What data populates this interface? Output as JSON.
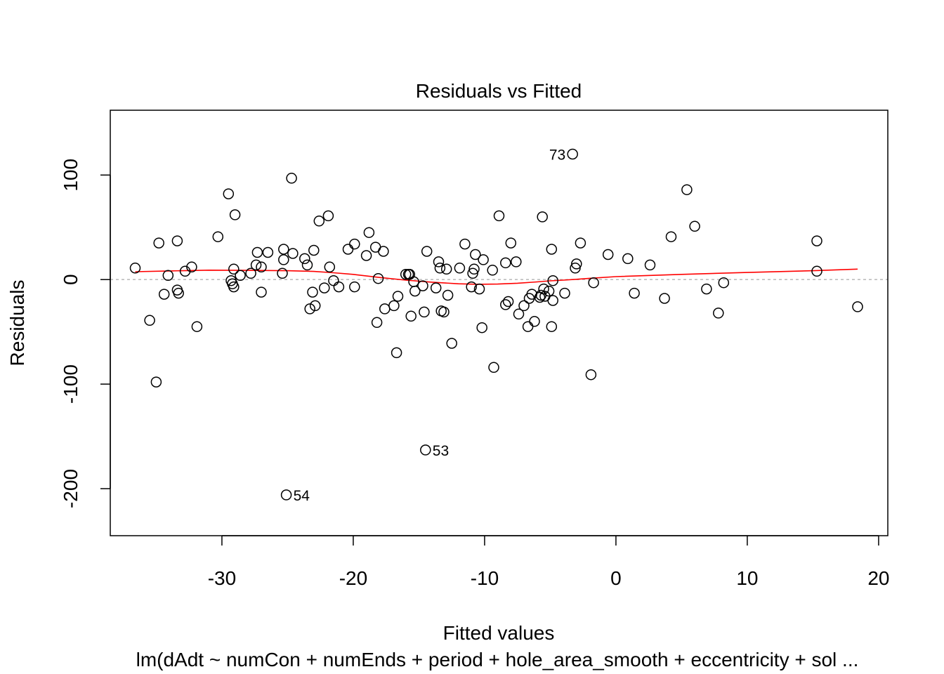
{
  "chart_data": {
    "type": "scatter",
    "title": "Residuals vs Fitted",
    "xlabel": "Fitted values",
    "ylabel": "Residuals",
    "subtitle": "lm(dAdt ~ numCon + numEnds + period + hole_area_smooth + eccentricity + sol ...",
    "xlim": [
      -38.5,
      20.7
    ],
    "ylim": [
      -245,
      162
    ],
    "xticks": [
      -30,
      -20,
      -10,
      0,
      10,
      20
    ],
    "xtick_labels": [
      "-30",
      "-20",
      "-10",
      "0",
      "10",
      "20"
    ],
    "yticks": [
      -200,
      -100,
      0,
      100
    ],
    "ytick_labels": [
      "-200",
      "-100",
      "0",
      "100"
    ],
    "grid": false,
    "legend": "none",
    "colors": {
      "points": "#000000",
      "smoother": "#ff0000",
      "zero_line": "#bebebe"
    },
    "reference_line": {
      "y": 0,
      "style": "dotted"
    },
    "points": [
      [
        -36.6,
        11
      ],
      [
        -35.5,
        -39
      ],
      [
        -35.0,
        -98
      ],
      [
        -34.8,
        35
      ],
      [
        -34.4,
        -14
      ],
      [
        -34.1,
        4
      ],
      [
        -33.4,
        -10
      ],
      [
        -33.4,
        37
      ],
      [
        -33.3,
        -13
      ],
      [
        -32.8,
        8
      ],
      [
        -32.3,
        12
      ],
      [
        -31.9,
        -45
      ],
      [
        -30.3,
        41
      ],
      [
        -29.5,
        82
      ],
      [
        -29.3,
        -1
      ],
      [
        -29.2,
        -4
      ],
      [
        -29.1,
        10
      ],
      [
        -29.1,
        -7
      ],
      [
        -29.0,
        62
      ],
      [
        -28.6,
        4
      ],
      [
        -27.8,
        6
      ],
      [
        -27.4,
        14
      ],
      [
        -27.3,
        26
      ],
      [
        -27.0,
        12
      ],
      [
        -27.0,
        -12
      ],
      [
        -26.5,
        26
      ],
      [
        -25.4,
        6
      ],
      [
        -25.3,
        29
      ],
      [
        -25.3,
        19
      ],
      [
        -24.7,
        97
      ],
      [
        -24.6,
        25
      ],
      [
        -23.7,
        20
      ],
      [
        -23.5,
        14
      ],
      [
        -23.3,
        -28
      ],
      [
        -23.1,
        -12
      ],
      [
        -23.0,
        28
      ],
      [
        -22.9,
        -25
      ],
      [
        -22.6,
        56
      ],
      [
        -22.2,
        -8
      ],
      [
        -21.9,
        61
      ],
      [
        -21.8,
        12
      ],
      [
        -21.5,
        -1
      ],
      [
        -21.1,
        -7
      ],
      [
        -20.4,
        29
      ],
      [
        -19.9,
        34
      ],
      [
        -19.9,
        -7
      ],
      [
        -19.0,
        23
      ],
      [
        -18.8,
        45
      ],
      [
        -18.3,
        31
      ],
      [
        -18.2,
        -41
      ],
      [
        -18.1,
        1
      ],
      [
        -17.7,
        27
      ],
      [
        -17.6,
        -28
      ],
      [
        -16.9,
        -25
      ],
      [
        -16.7,
        -70
      ],
      [
        -16.6,
        -16
      ],
      [
        -16.0,
        5
      ],
      [
        -15.8,
        5
      ],
      [
        -15.7,
        5
      ],
      [
        -15.6,
        -35
      ],
      [
        -15.4,
        -2
      ],
      [
        -15.3,
        -11
      ],
      [
        -14.7,
        -6
      ],
      [
        -14.6,
        -31
      ],
      [
        -14.4,
        27
      ],
      [
        -13.7,
        -8
      ],
      [
        -13.5,
        17
      ],
      [
        -13.4,
        11
      ],
      [
        -13.3,
        -30
      ],
      [
        -13.1,
        -31
      ],
      [
        -12.9,
        10
      ],
      [
        -12.8,
        -15
      ],
      [
        -12.5,
        -61
      ],
      [
        -11.9,
        11
      ],
      [
        -11.5,
        34
      ],
      [
        -11.0,
        -7
      ],
      [
        -10.9,
        6
      ],
      [
        -10.8,
        10
      ],
      [
        -10.7,
        24
      ],
      [
        -10.4,
        -9
      ],
      [
        -10.2,
        -46
      ],
      [
        -10.1,
        19
      ],
      [
        -9.4,
        9
      ],
      [
        -9.3,
        -84
      ],
      [
        -8.9,
        61
      ],
      [
        -8.4,
        16
      ],
      [
        -8.4,
        -24
      ],
      [
        -8.2,
        -21
      ],
      [
        -8.0,
        35
      ],
      [
        -7.6,
        17
      ],
      [
        -7.4,
        -33
      ],
      [
        -7.0,
        -25
      ],
      [
        -6.7,
        -45
      ],
      [
        -6.6,
        -18
      ],
      [
        -6.4,
        -14
      ],
      [
        -6.2,
        -40
      ],
      [
        -5.8,
        -17
      ],
      [
        -5.7,
        -15
      ],
      [
        -5.6,
        60
      ],
      [
        -5.5,
        -9
      ],
      [
        -5.4,
        -16
      ],
      [
        -5.1,
        -11
      ],
      [
        -4.9,
        29
      ],
      [
        -4.9,
        -45
      ],
      [
        -4.8,
        -1
      ],
      [
        -4.8,
        -20
      ],
      [
        -3.9,
        -13
      ],
      [
        -3.3,
        120
      ],
      [
        -3.1,
        11
      ],
      [
        -3.0,
        15
      ],
      [
        -2.7,
        35
      ],
      [
        -1.9,
        -91
      ],
      [
        -1.7,
        -3
      ],
      [
        -0.6,
        24
      ],
      [
        0.9,
        20
      ],
      [
        1.4,
        -13
      ],
      [
        2.6,
        14
      ],
      [
        3.7,
        -18
      ],
      [
        4.2,
        41
      ],
      [
        5.4,
        86
      ],
      [
        6.0,
        51
      ],
      [
        6.9,
        -9
      ],
      [
        7.8,
        -32
      ],
      [
        8.2,
        -3
      ],
      [
        15.3,
        37
      ],
      [
        15.3,
        8
      ],
      [
        18.4,
        -26
      ],
      [
        -25.1,
        -206
      ],
      [
        -14.5,
        -163
      ]
    ],
    "point_labels": [
      {
        "text": "73",
        "x": -3.3,
        "y": 120,
        "side": "left"
      },
      {
        "text": "54",
        "x": -25.1,
        "y": -206,
        "side": "right"
      },
      {
        "text": "53",
        "x": -14.5,
        "y": -163,
        "side": "right"
      }
    ],
    "smoother": {
      "x": [
        -36.6,
        -34,
        -31,
        -28,
        -25,
        -23,
        -21.5,
        -20,
        -18,
        -16,
        -14,
        -12,
        -10.5,
        -9,
        -7.5,
        -6,
        -5,
        -4,
        -3,
        -2,
        0,
        5,
        10,
        15,
        18.4
      ],
      "y": [
        7.5,
        8.3,
        9.0,
        8.8,
        8.5,
        7.8,
        6.5,
        5.0,
        2.0,
        -0.5,
        -2.5,
        -4.0,
        -4.5,
        -4.3,
        -3.5,
        -2.2,
        -1.2,
        -0.5,
        0.3,
        1.2,
        2.8,
        5.0,
        6.8,
        8.5,
        10.0
      ]
    }
  }
}
